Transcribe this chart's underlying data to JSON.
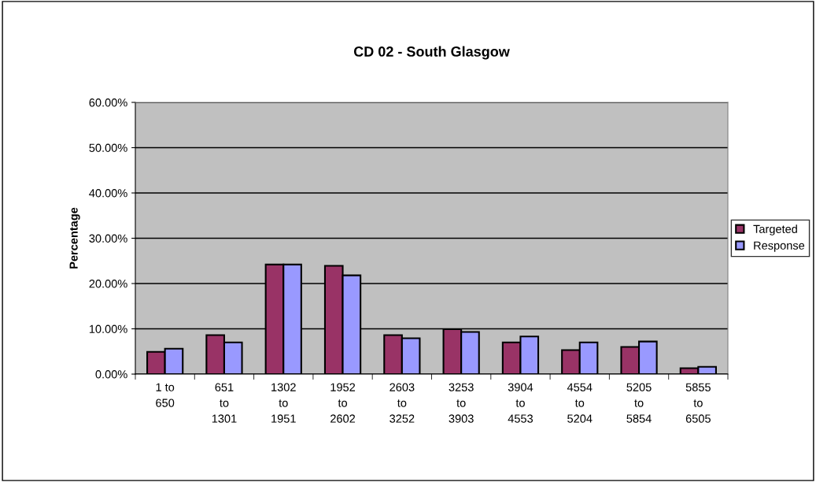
{
  "chart_data": {
    "type": "bar",
    "title": "CD 02 - South Glasgow",
    "ylabel": "Percentage",
    "categories": [
      "1 to\n650",
      "651\nto\n1301",
      "1302\nto\n1951",
      "1952\nto\n2602",
      "2603\nto\n3252",
      "3253\nto\n3903",
      "3904\nto\n4553",
      "4554\nto\n5204",
      "5205\nto\n5854",
      "5855\nto\n6505"
    ],
    "series": [
      {
        "name": "Targeted",
        "color": "#993366",
        "values": [
          4.9,
          8.6,
          24.2,
          23.9,
          8.6,
          9.9,
          7.0,
          5.3,
          6.0,
          1.3
        ]
      },
      {
        "name": "Response",
        "color": "#9999ff",
        "values": [
          5.6,
          7.0,
          24.2,
          21.8,
          7.9,
          9.3,
          8.3,
          7.0,
          7.2,
          1.6
        ]
      }
    ],
    "ylim": [
      0,
      60
    ],
    "yticks": [
      {
        "value": 0,
        "label": "0.00%"
      },
      {
        "value": 10,
        "label": "10.00%"
      },
      {
        "value": 20,
        "label": "20.00%"
      },
      {
        "value": 30,
        "label": "30.00%"
      },
      {
        "value": 40,
        "label": "40.00%"
      },
      {
        "value": 50,
        "label": "50.00%"
      },
      {
        "value": 60,
        "label": "60.00%"
      }
    ],
    "grid": "y",
    "legend": "right"
  }
}
